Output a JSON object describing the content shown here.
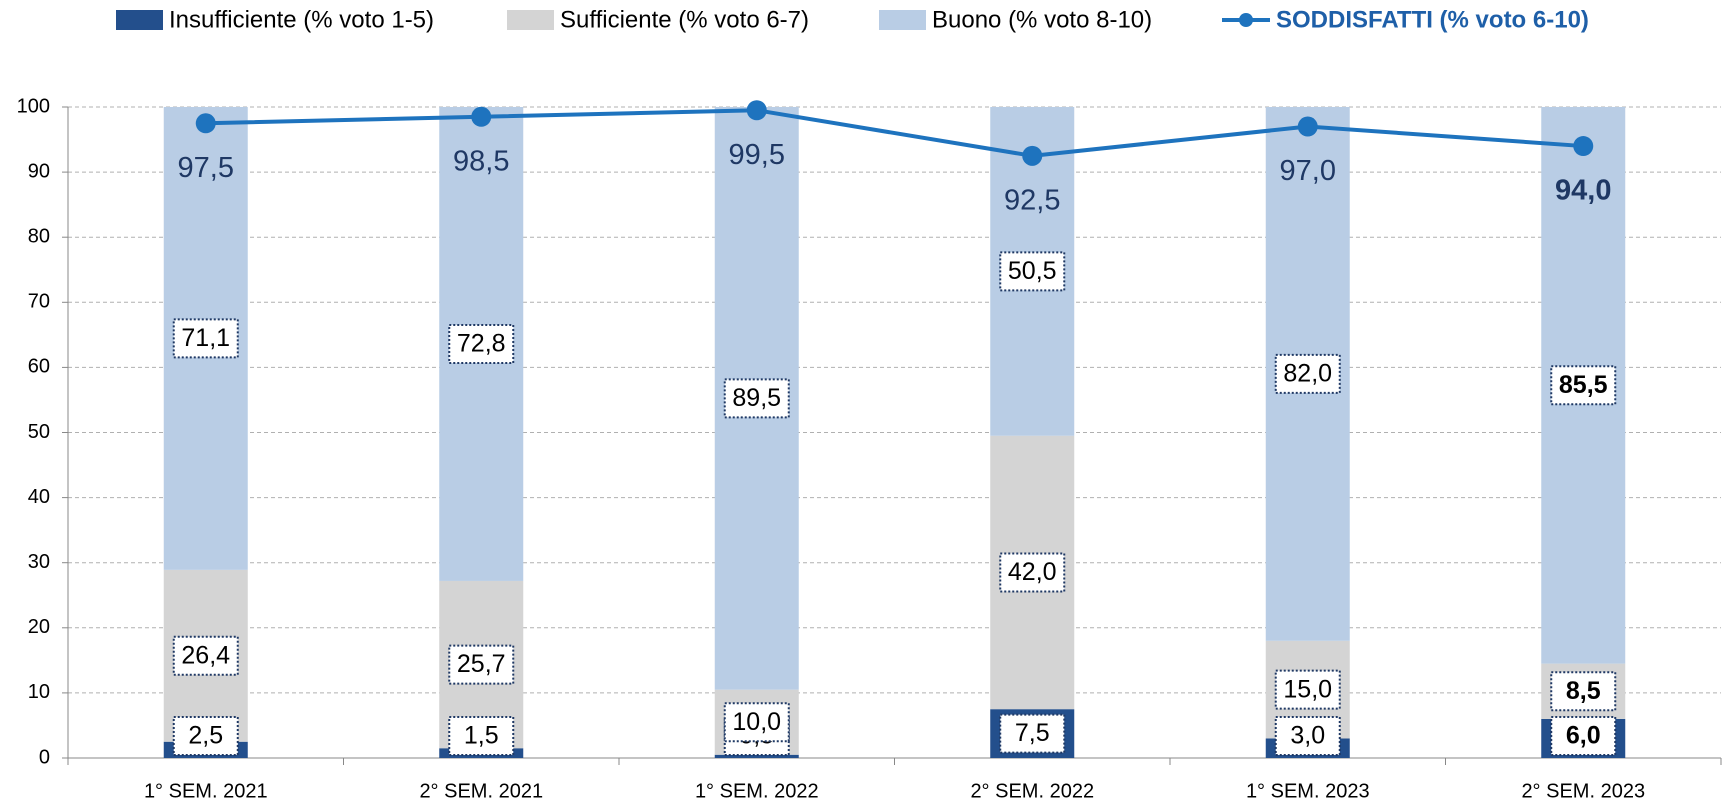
{
  "chart_data": {
    "type": "bar",
    "stacked": true,
    "categories": [
      "1° SEM. 2021",
      "2° SEM. 2021",
      "1° SEM. 2022",
      "2° SEM. 2022",
      "1° SEM. 2023",
      "2° SEM. 2023"
    ],
    "series": [
      {
        "name": "Insufficiente (% voto 1-5)",
        "color": "#234f8c",
        "values": [
          2.5,
          1.5,
          0.5,
          7.5,
          3.0,
          6.0
        ],
        "value_labels": [
          "2,5",
          "1,5",
          "0,5",
          "7,5",
          "3,0",
          "6,0"
        ]
      },
      {
        "name": "Sufficiente (% voto 6-7)",
        "color": "#d4d4d4",
        "values": [
          26.4,
          25.7,
          10.0,
          42.0,
          15.0,
          8.5
        ],
        "value_labels": [
          "26,4",
          "25,7",
          "10,0",
          "42,0",
          "15,0",
          "8,5"
        ]
      },
      {
        "name": "Buono (% voto 8-10)",
        "color": "#b9cde5",
        "values": [
          71.1,
          72.8,
          89.5,
          50.5,
          82.0,
          85.5
        ],
        "value_labels": [
          "71,1",
          "72,8",
          "89,5",
          "50,5",
          "82,0",
          "85,5"
        ]
      }
    ],
    "line": {
      "name": "SODDISFATTI (% voto 6-10)",
      "color": "#1e73be",
      "values": [
        97.5,
        98.5,
        99.5,
        92.5,
        97.0,
        94.0
      ],
      "value_labels": [
        "97,5",
        "98,5",
        "99,5",
        "92,5",
        "97,0",
        "94,0"
      ]
    },
    "ylim": [
      0,
      100
    ],
    "yticks": [
      0,
      10,
      20,
      30,
      40,
      50,
      60,
      70,
      80,
      90,
      100
    ],
    "grid": true
  }
}
